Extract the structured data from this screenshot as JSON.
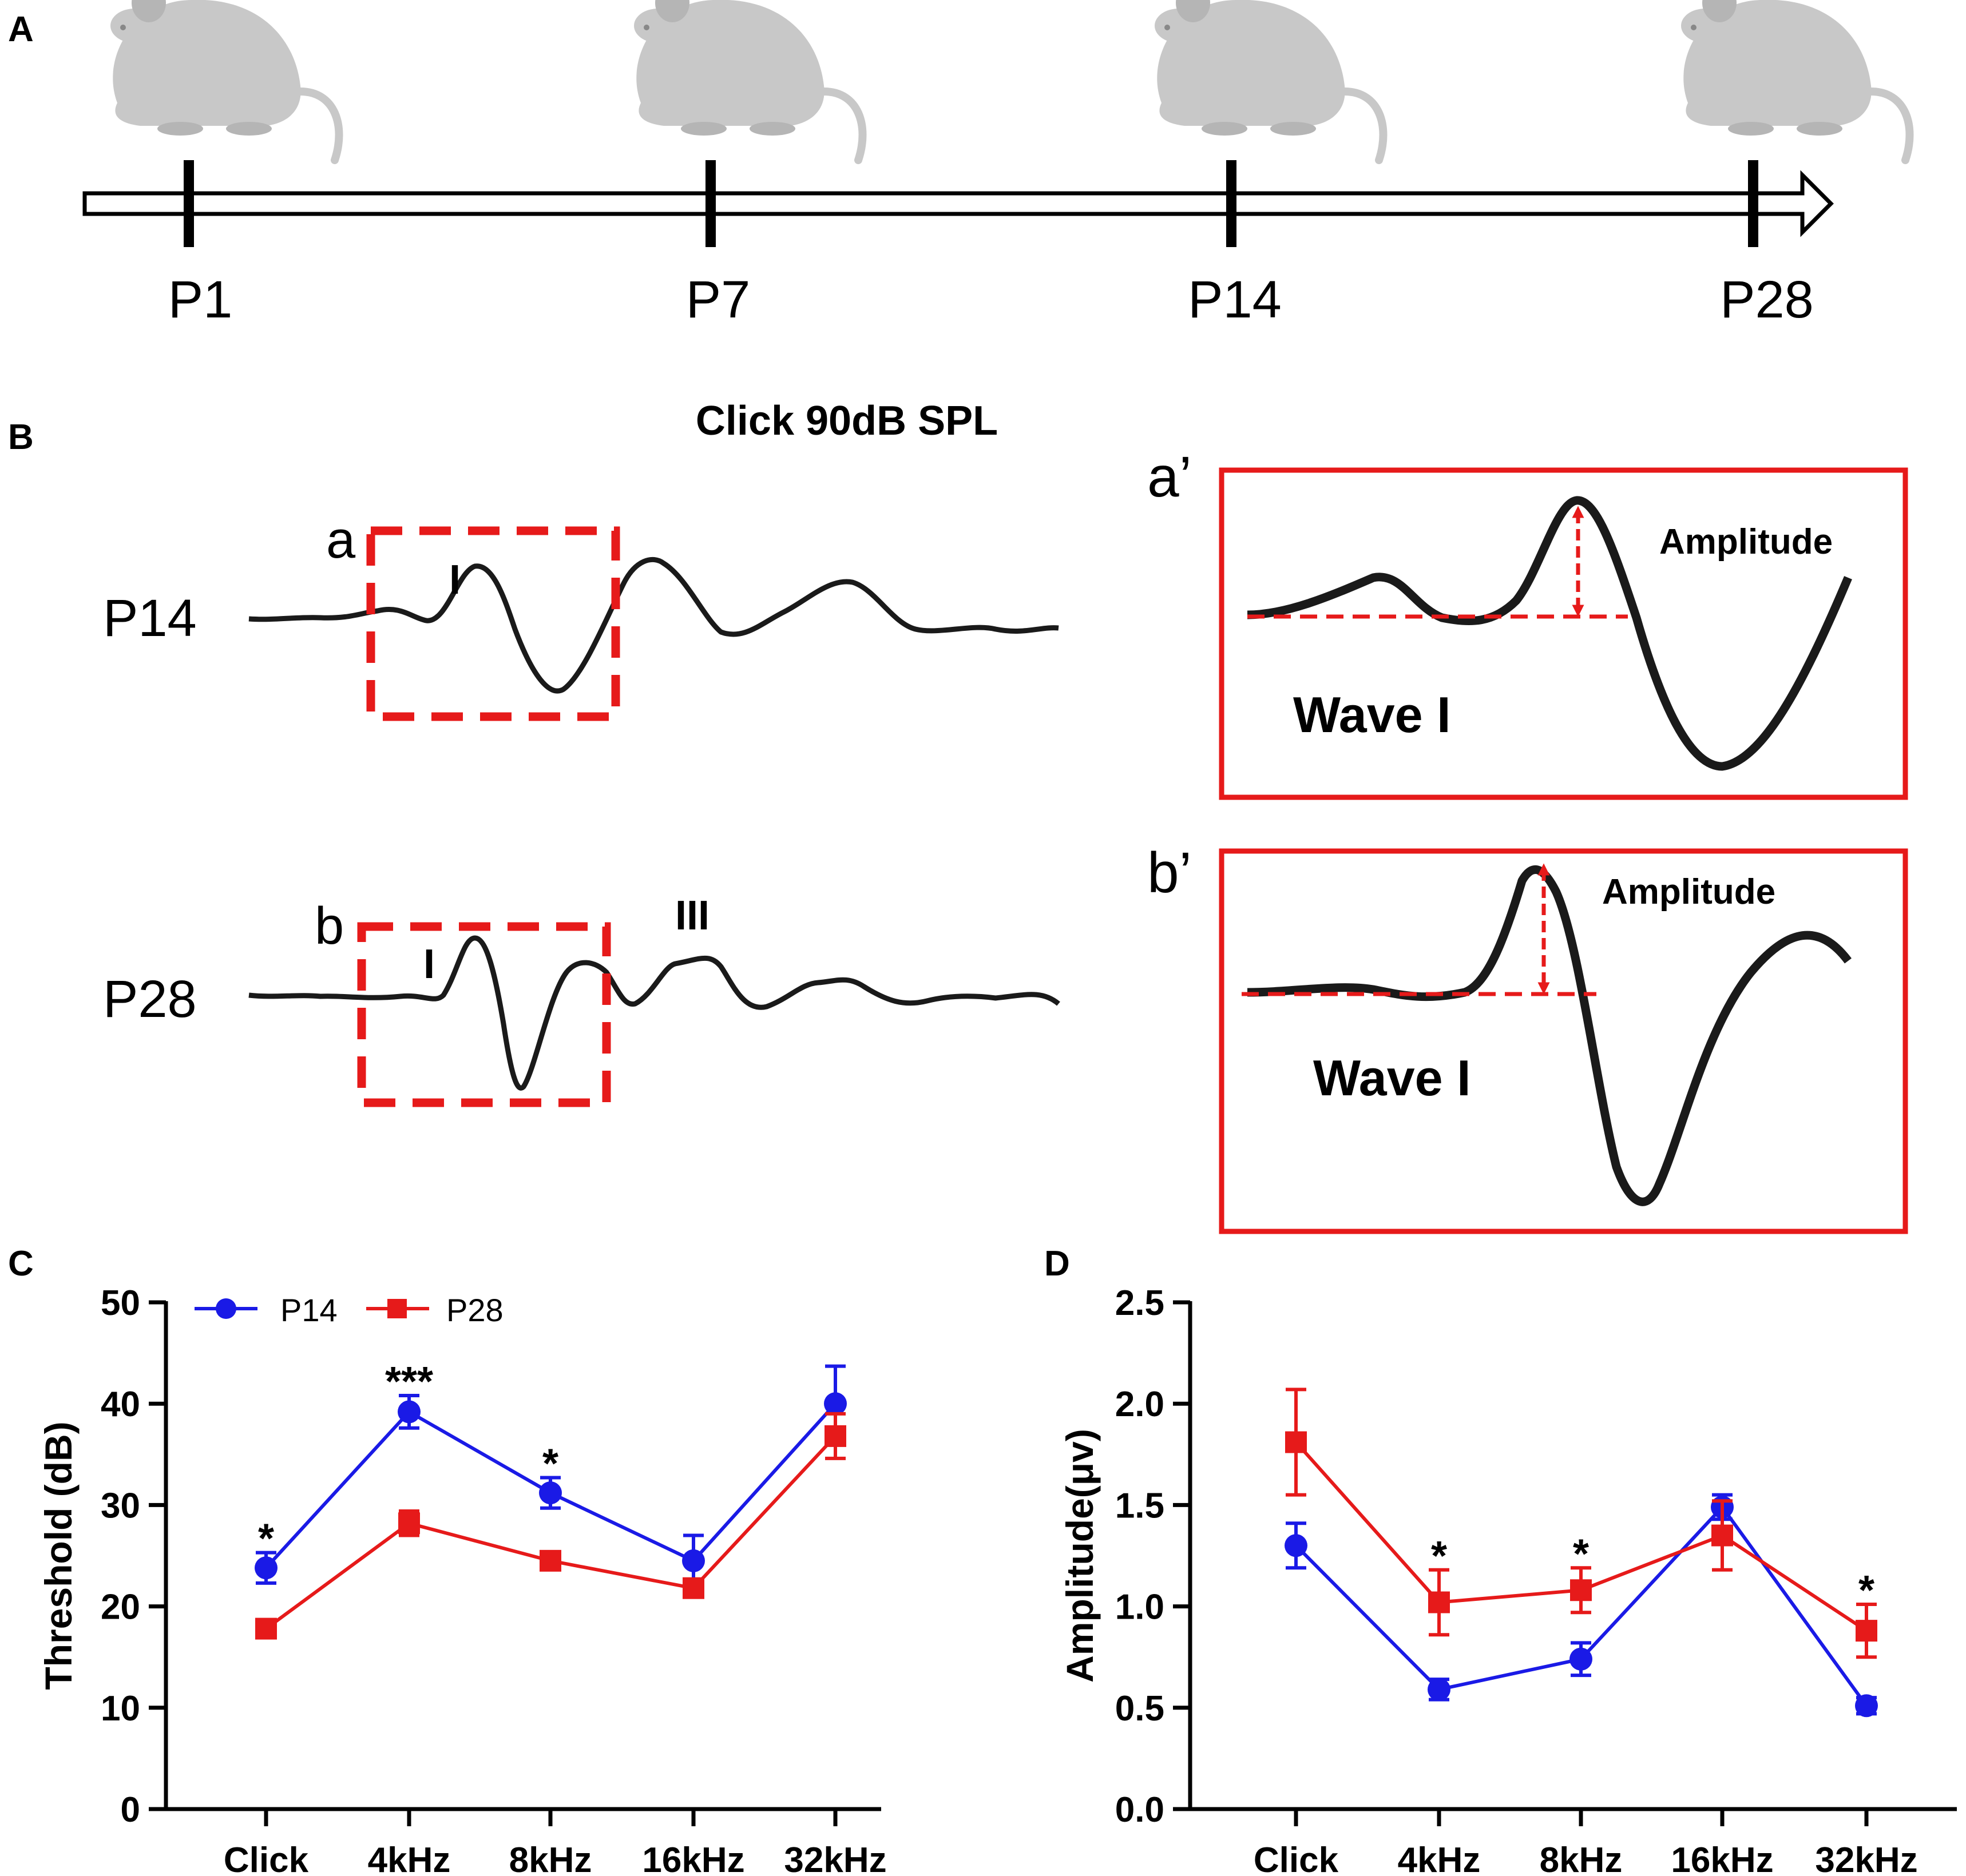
{
  "colors": {
    "p14": "#1a1ae6",
    "p28": "#e61a1a",
    "dash": "#e61a1a",
    "trace": "#1a1a1a",
    "mouse": "#c8c8c8"
  },
  "panelA": {
    "label": "A",
    "timepoints": [
      "P1",
      "P7",
      "P14",
      "P28"
    ],
    "icons": [
      "mouse-icon",
      "arrow-right-icon"
    ]
  },
  "panelB": {
    "label": "B",
    "title": "Click 90dB SPL",
    "traces": [
      {
        "row": "P14",
        "box": "a",
        "peaks": [
          "I"
        ]
      },
      {
        "row": "P28",
        "box": "b",
        "peaks": [
          "I",
          "III"
        ]
      }
    ],
    "insets": [
      {
        "label": "a’",
        "amplitude": "Amplitude",
        "wave": "Wave I"
      },
      {
        "label": "b’",
        "amplitude": "Amplitude",
        "wave": "Wave I"
      }
    ]
  },
  "chart_data": [
    {
      "panel": "C",
      "type": "line",
      "title": "",
      "xlabel": "",
      "ylabel": "Threshold (dB)",
      "categories": [
        "Click",
        "4kHz",
        "8kHz",
        "16kHz",
        "32kHz"
      ],
      "ylim": [
        0,
        50
      ],
      "yticks": [
        0,
        10,
        20,
        30,
        40,
        50
      ],
      "legend": "top-left",
      "series": [
        {
          "name": "P14",
          "marker": "circle",
          "values": [
            23.8,
            39.2,
            31.2,
            24.5,
            40.0
          ],
          "errors": [
            1.5,
            1.6,
            1.5,
            2.5,
            3.7
          ]
        },
        {
          "name": "P28",
          "marker": "square",
          "values": [
            17.8,
            28.2,
            24.5,
            21.8,
            36.8
          ],
          "errors": [
            0.6,
            1.2,
            0.8,
            0.8,
            2.2
          ]
        }
      ],
      "significance": [
        "*",
        "***",
        "*",
        "",
        ""
      ]
    },
    {
      "panel": "D",
      "type": "line",
      "title": "",
      "xlabel": "",
      "ylabel": "Amplitude(μv)",
      "categories": [
        "Click",
        "4kHz",
        "8kHz",
        "16kHz",
        "32kHz"
      ],
      "ylim": [
        0,
        2.5
      ],
      "yticks": [
        "0.0",
        "0.5",
        "1.0",
        "1.5",
        "2.0",
        "2.5"
      ],
      "series": [
        {
          "name": "P14",
          "marker": "circle",
          "values": [
            1.3,
            0.59,
            0.74,
            1.49,
            0.51
          ],
          "errors": [
            0.11,
            0.05,
            0.08,
            0.06,
            0.04
          ]
        },
        {
          "name": "P28",
          "marker": "square",
          "values": [
            1.81,
            1.02,
            1.08,
            1.35,
            0.88
          ],
          "errors": [
            0.26,
            0.16,
            0.11,
            0.17,
            0.13
          ]
        }
      ],
      "significance": [
        "",
        "*",
        "*",
        "",
        "*"
      ]
    }
  ]
}
